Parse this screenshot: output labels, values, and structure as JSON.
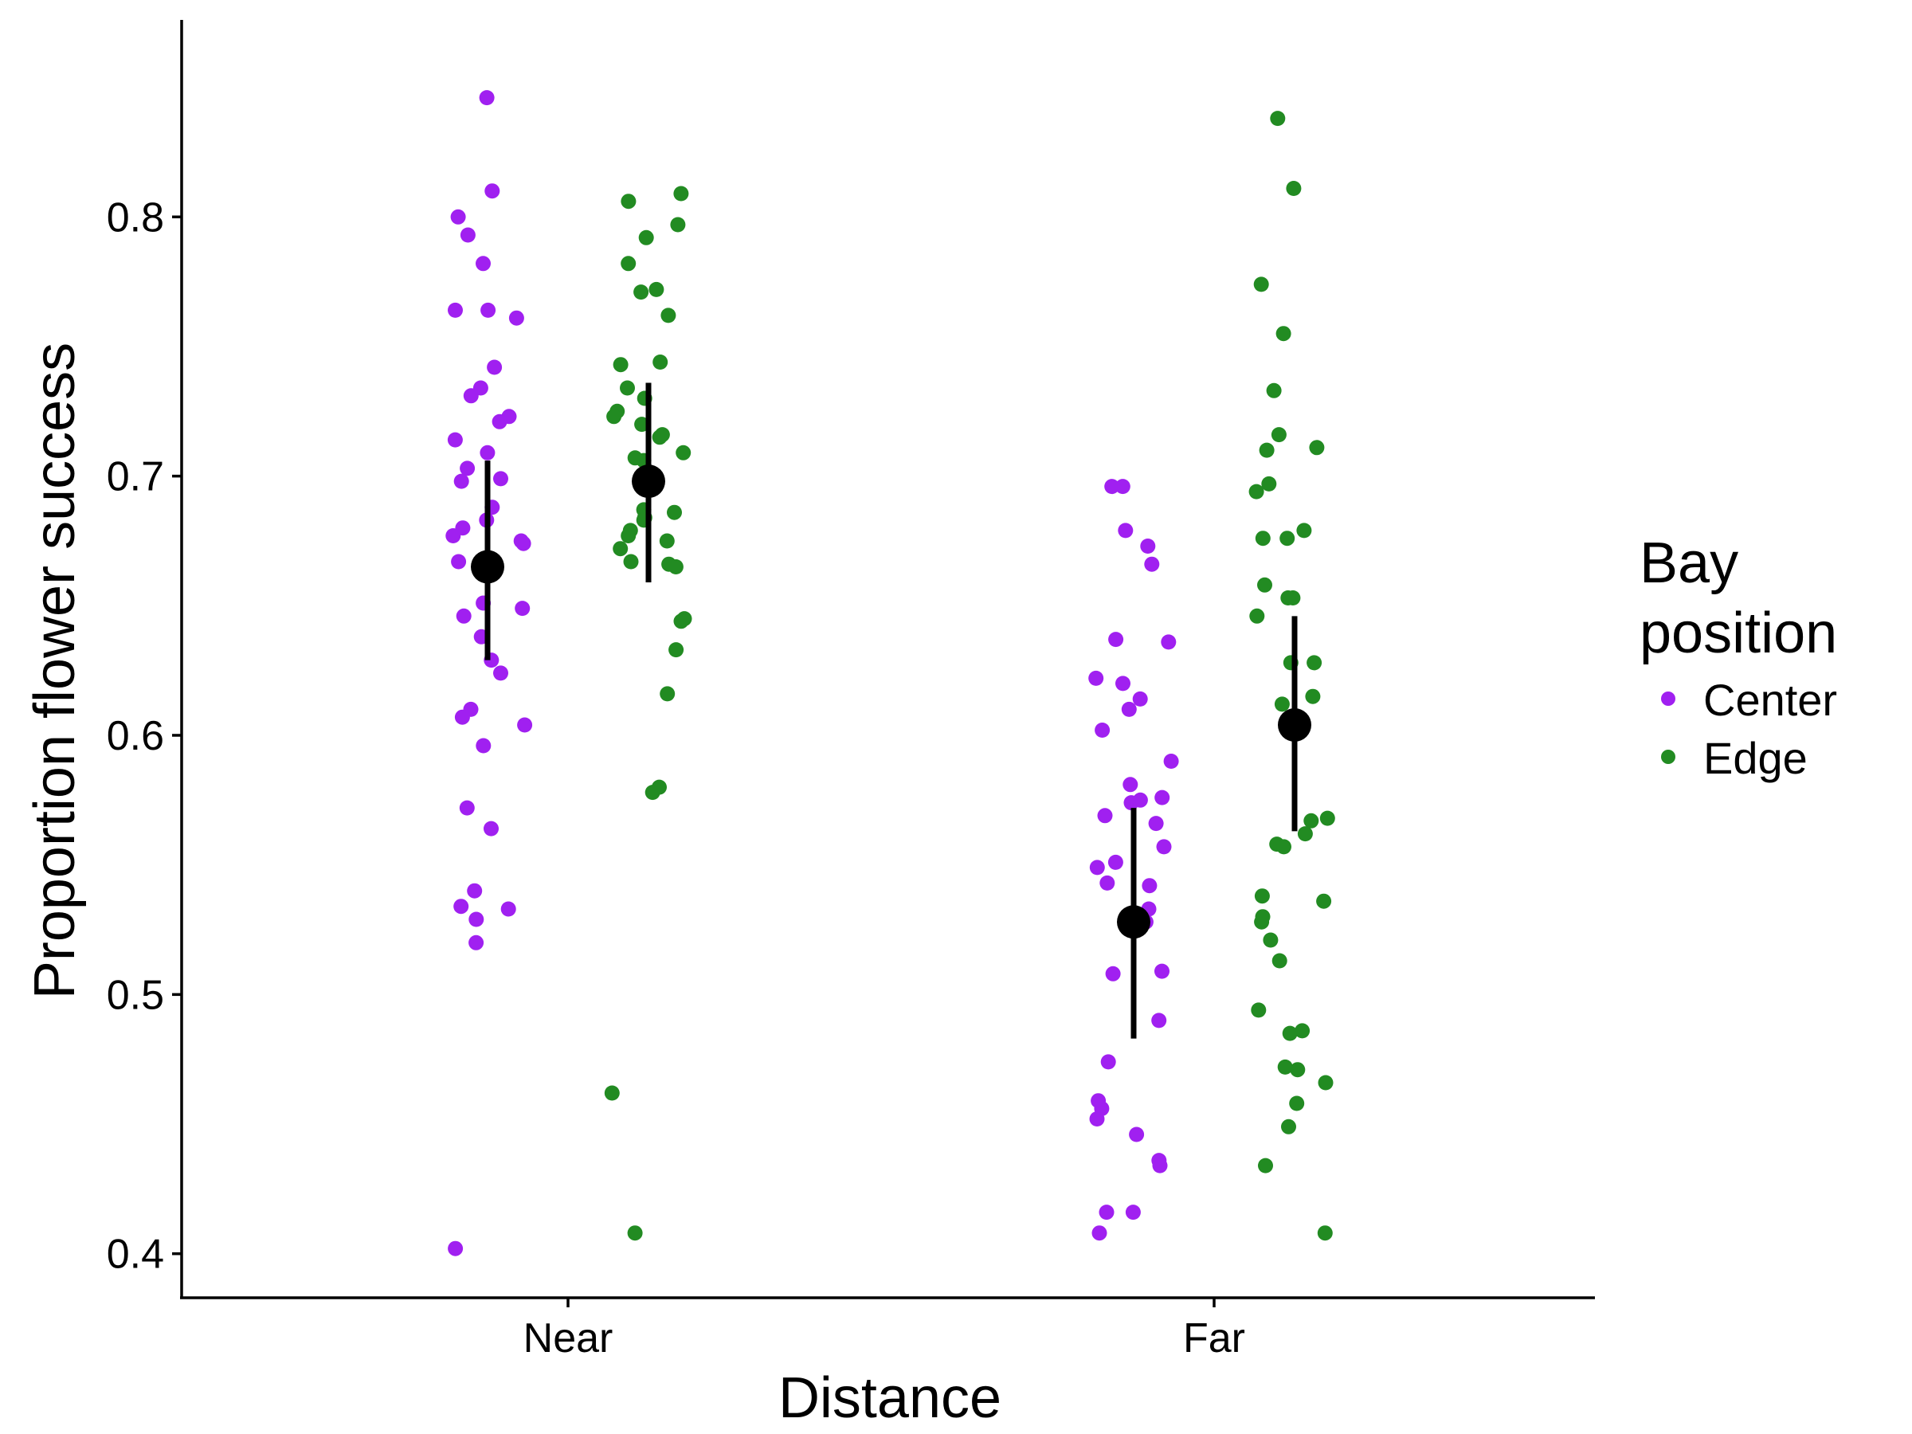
{
  "chart_data": {
    "type": "scatter",
    "xlabel": "Distance",
    "ylabel": "Proportion flower success",
    "categories": [
      "Near",
      "Far"
    ],
    "ylim": [
      0.383,
      0.876
    ],
    "yticks": [
      0.4,
      0.5,
      0.6,
      0.7,
      0.8
    ],
    "yticklabels": [
      "0.4",
      "0.5",
      "0.6",
      "0.7",
      "0.8"
    ],
    "grid": false,
    "legend": {
      "title_lines": [
        "Bay",
        "position"
      ],
      "placement": "right",
      "entries": [
        "Center",
        "Edge"
      ]
    },
    "colors": {
      "Center": "#a020f0",
      "Edge": "#228b22",
      "summary": "#000000"
    },
    "series": [
      {
        "name": "Center",
        "category": "Near",
        "values": [
          0.846,
          0.81,
          0.8,
          0.793,
          0.782,
          0.764,
          0.764,
          0.761,
          0.742,
          0.734,
          0.731,
          0.723,
          0.721,
          0.714,
          0.709,
          0.703,
          0.699,
          0.698,
          0.688,
          0.683,
          0.68,
          0.677,
          0.675,
          0.674,
          0.667,
          0.651,
          0.649,
          0.646,
          0.638,
          0.629,
          0.624,
          0.61,
          0.607,
          0.604,
          0.596,
          0.572,
          0.564,
          0.54,
          0.534,
          0.533,
          0.529,
          0.52,
          0.402
        ]
      },
      {
        "name": "Edge",
        "category": "Near",
        "values": [
          0.809,
          0.806,
          0.797,
          0.792,
          0.782,
          0.772,
          0.771,
          0.762,
          0.744,
          0.743,
          0.734,
          0.73,
          0.725,
          0.723,
          0.72,
          0.716,
          0.715,
          0.709,
          0.707,
          0.706,
          0.697,
          0.687,
          0.686,
          0.684,
          0.683,
          0.679,
          0.677,
          0.675,
          0.672,
          0.667,
          0.666,
          0.665,
          0.645,
          0.644,
          0.633,
          0.616,
          0.58,
          0.578,
          0.462,
          0.408
        ]
      },
      {
        "name": "Center",
        "category": "Far",
        "values": [
          0.696,
          0.696,
          0.679,
          0.673,
          0.666,
          0.637,
          0.636,
          0.622,
          0.62,
          0.614,
          0.61,
          0.602,
          0.59,
          0.581,
          0.576,
          0.575,
          0.574,
          0.569,
          0.566,
          0.557,
          0.551,
          0.549,
          0.543,
          0.542,
          0.533,
          0.528,
          0.509,
          0.508,
          0.49,
          0.474,
          0.459,
          0.456,
          0.452,
          0.446,
          0.436,
          0.434,
          0.416,
          0.416,
          0.408
        ]
      },
      {
        "name": "Edge",
        "category": "Far",
        "values": [
          0.838,
          0.811,
          0.774,
          0.755,
          0.733,
          0.716,
          0.711,
          0.71,
          0.697,
          0.694,
          0.679,
          0.676,
          0.676,
          0.658,
          0.653,
          0.653,
          0.646,
          0.628,
          0.628,
          0.615,
          0.612,
          0.568,
          0.567,
          0.562,
          0.558,
          0.557,
          0.538,
          0.536,
          0.53,
          0.528,
          0.521,
          0.513,
          0.494,
          0.486,
          0.485,
          0.472,
          0.471,
          0.466,
          0.458,
          0.449,
          0.434,
          0.408
        ]
      }
    ],
    "summary": [
      {
        "name": "Center",
        "category": "Near",
        "mean": 0.665,
        "lower": 0.629,
        "upper": 0.706
      },
      {
        "name": "Edge",
        "category": "Near",
        "mean": 0.698,
        "lower": 0.659,
        "upper": 0.736
      },
      {
        "name": "Center",
        "category": "Far",
        "mean": 0.528,
        "lower": 0.483,
        "upper": 0.572
      },
      {
        "name": "Edge",
        "category": "Far",
        "mean": 0.604,
        "lower": 0.563,
        "upper": 0.646
      }
    ]
  }
}
